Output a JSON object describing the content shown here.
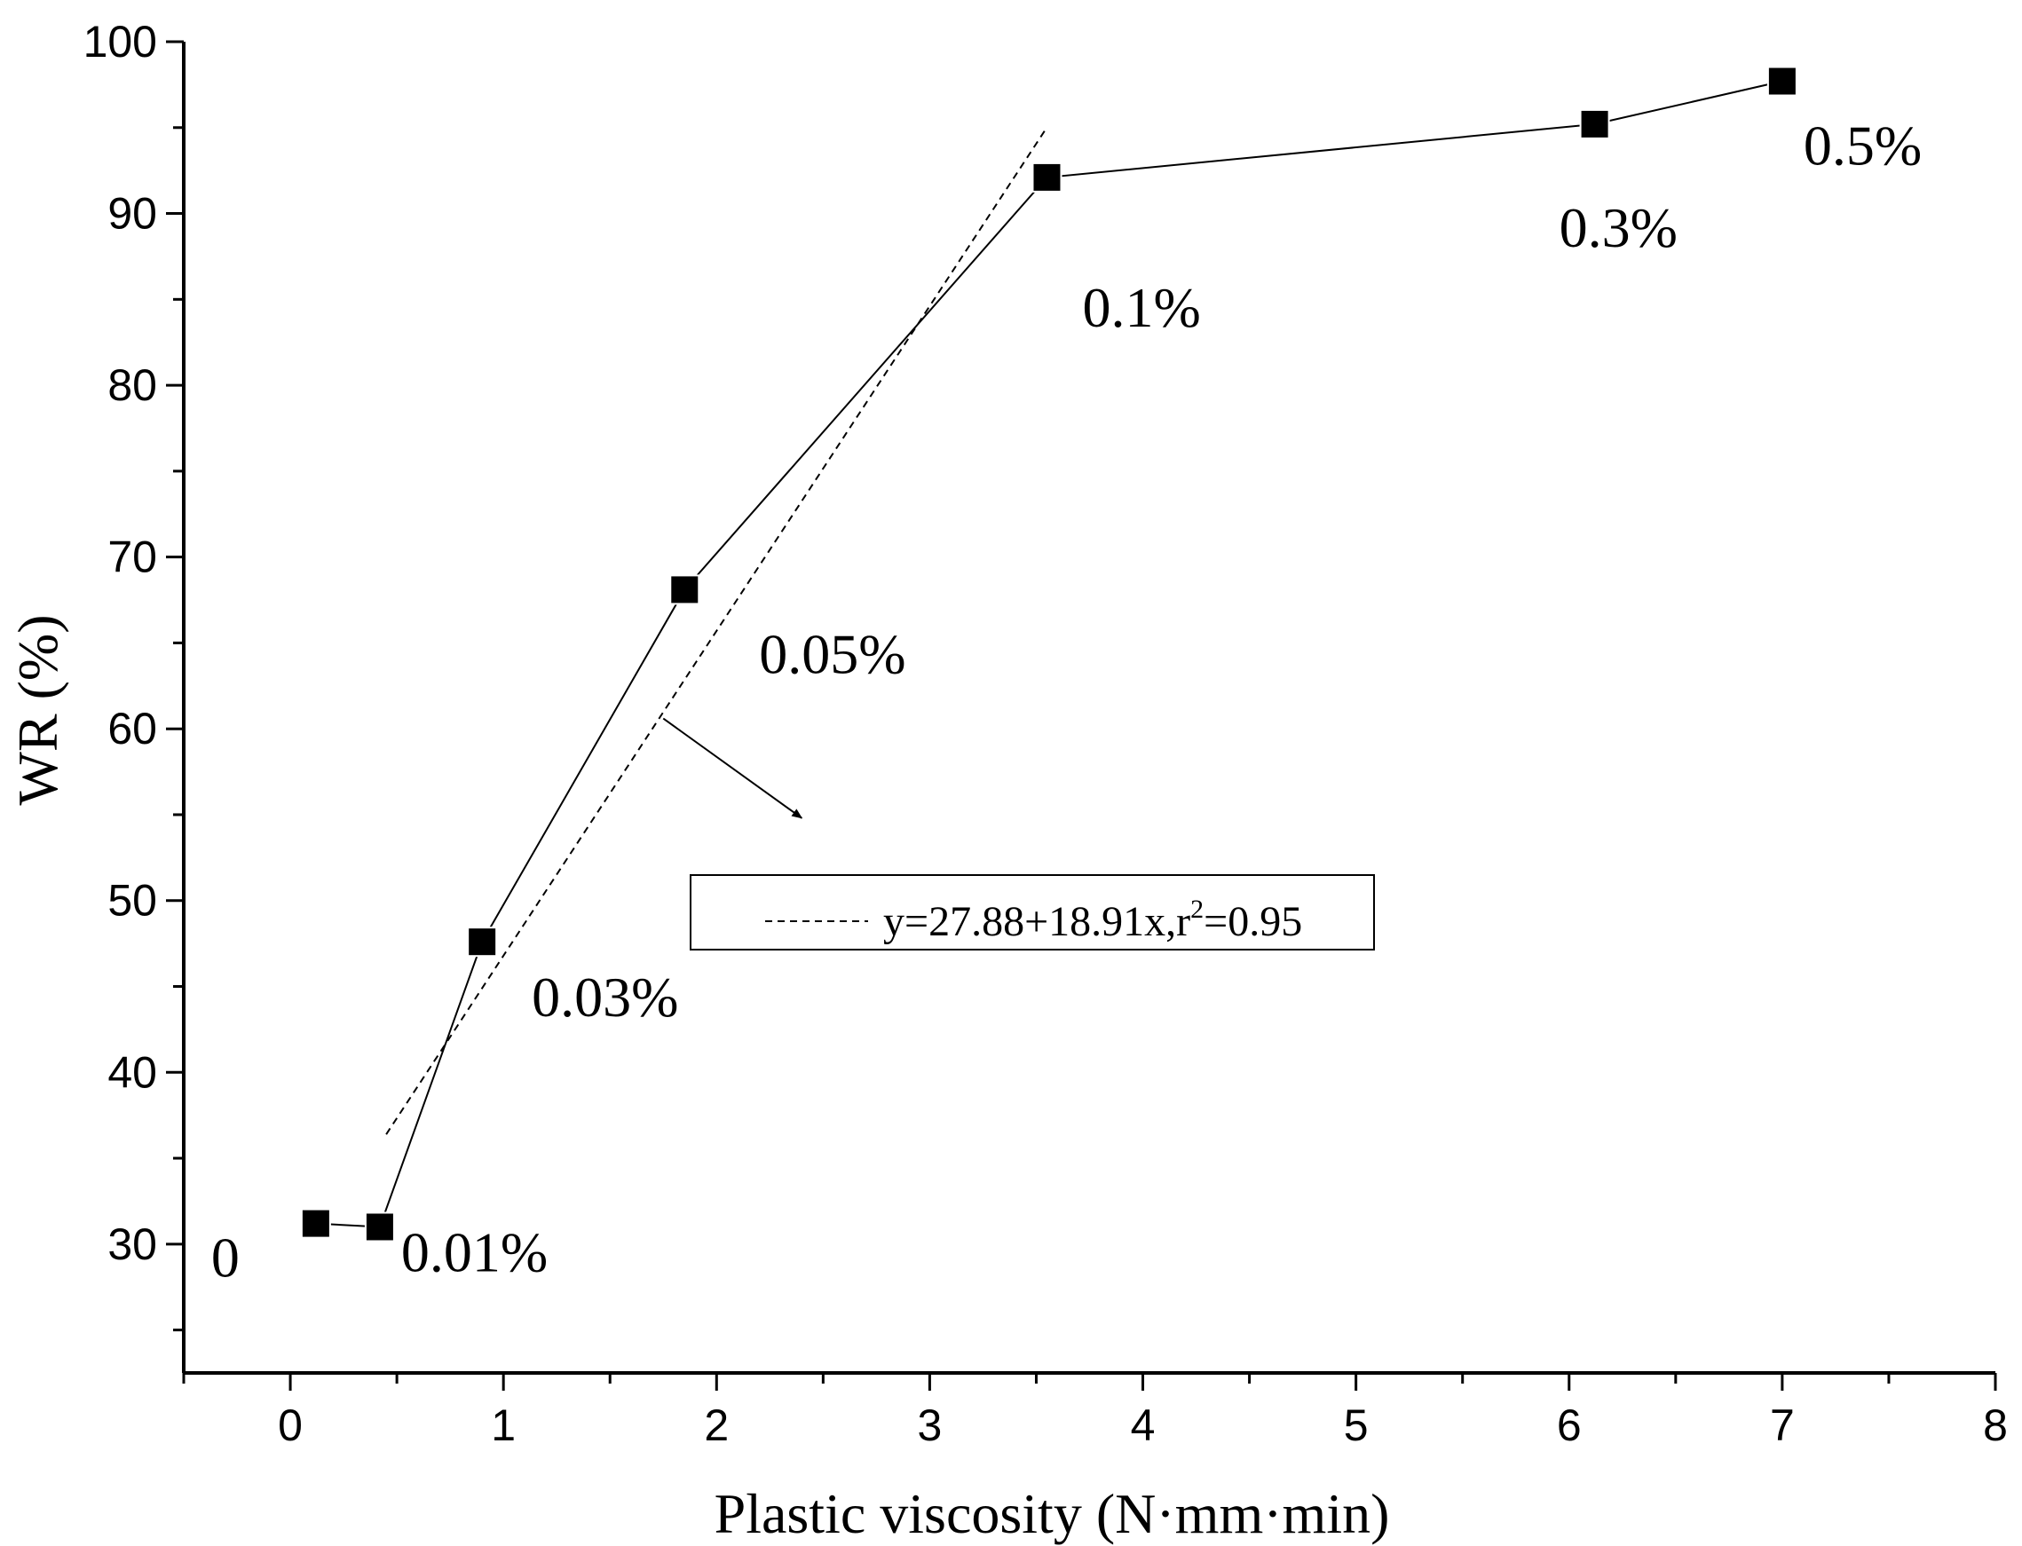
{
  "chart_data": {
    "type": "line",
    "title": "",
    "xlabel": "Plastic viscosity (N·mm·min)",
    "ylabel": "WR (%)",
    "xlim": [
      -0.5,
      8
    ],
    "ylim": [
      22.5,
      100
    ],
    "x_ticks": [
      "0",
      "1",
      "2",
      "3",
      "4",
      "5",
      "6",
      "7",
      "8"
    ],
    "y_ticks": [
      "30",
      "40",
      "50",
      "60",
      "70",
      "80",
      "90",
      "100"
    ],
    "series": [
      {
        "name": "WR",
        "marker": "square",
        "x": [
          0.12,
          0.42,
          0.9,
          1.85,
          3.55,
          6.12,
          7.0
        ],
        "y": [
          31.2,
          31.0,
          47.6,
          68.1,
          92.1,
          95.2,
          97.7
        ],
        "point_labels": [
          "0",
          "0.01%",
          "0.03%",
          "0.05%",
          "0.1%",
          "0.3%",
          "0.5%"
        ]
      }
    ],
    "fit_line": {
      "style": "dashed",
      "intercept": 27.88,
      "slope": 18.91,
      "x_range": [
        0.45,
        3.55
      ],
      "legend_label": "y=27.88+18.91x,r",
      "legend_sup": "2",
      "legend_suffix": "=0.95"
    },
    "annotation_arrow": {
      "from": [
        1.75,
        60.6
      ],
      "to": [
        2.4,
        54.8
      ]
    }
  }
}
